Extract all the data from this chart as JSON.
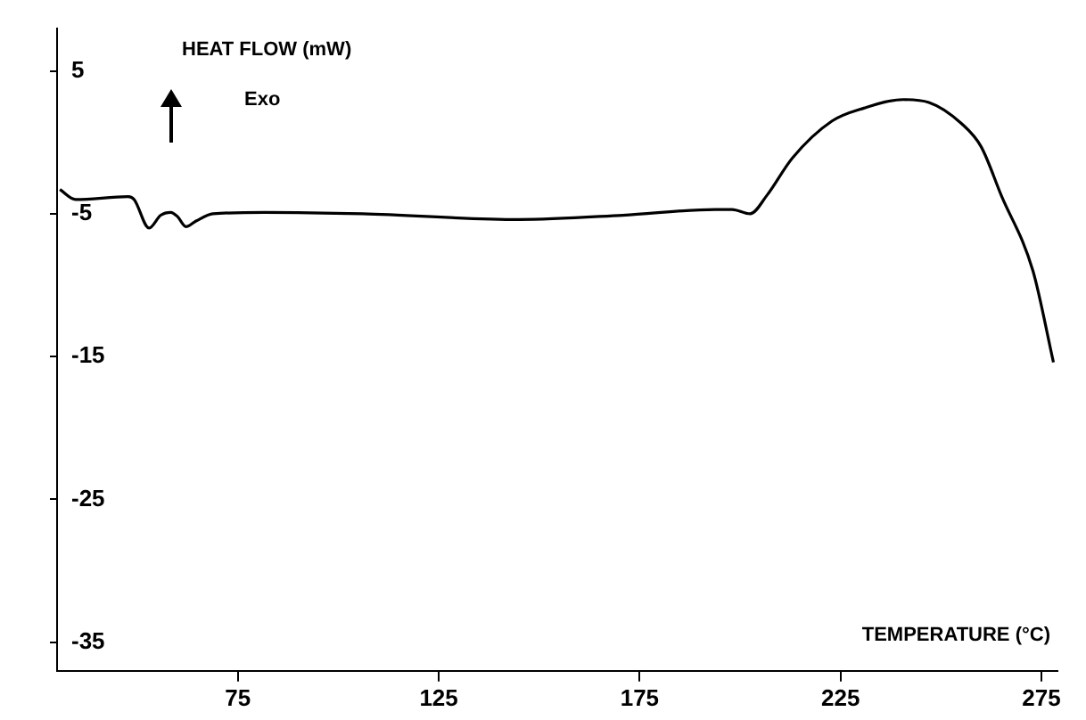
{
  "chart_data": {
    "type": "line",
    "xlabel": "TEMPERATURE (°C)",
    "ylabel": "HEAT FLOW (mW)",
    "annotations": [
      "Exo"
    ],
    "x": [
      30.7,
      34.6,
      47.7,
      49.2,
      52.9,
      55.8,
      58.3,
      60,
      62.1,
      64.6,
      68.8,
      81.7,
      106,
      145,
      170.8,
      193.8,
      198,
      202.5,
      206.7,
      213,
      222.9,
      230.8,
      240.6,
      247,
      255.2,
      260,
      265,
      272.9,
      278
    ],
    "series": [
      {
        "color": "#000000",
        "values": [
          -3.3,
          -4.0,
          -3.8,
          -4.0,
          -6.0,
          -5.1,
          -4.9,
          -5.2,
          -5.9,
          -5.5,
          -5.0,
          -4.9,
          -5.0,
          -5.4,
          -5.1,
          -4.7,
          -4.7,
          -5.0,
          -3.7,
          -1.1,
          1.5,
          2.4,
          3.0,
          2.8,
          1.3,
          -0.3,
          -3.7,
          -9.0,
          -15.4
        ]
      }
    ],
    "xlim": [
      30,
      279
    ],
    "xticks": [
      75,
      125,
      175,
      225,
      275
    ],
    "ylim": [
      -37,
      8
    ],
    "yticks": [
      5,
      -5,
      -15,
      -25,
      -35
    ],
    "grid": false,
    "legend": false,
    "marker": "none",
    "line_style": "solid"
  }
}
